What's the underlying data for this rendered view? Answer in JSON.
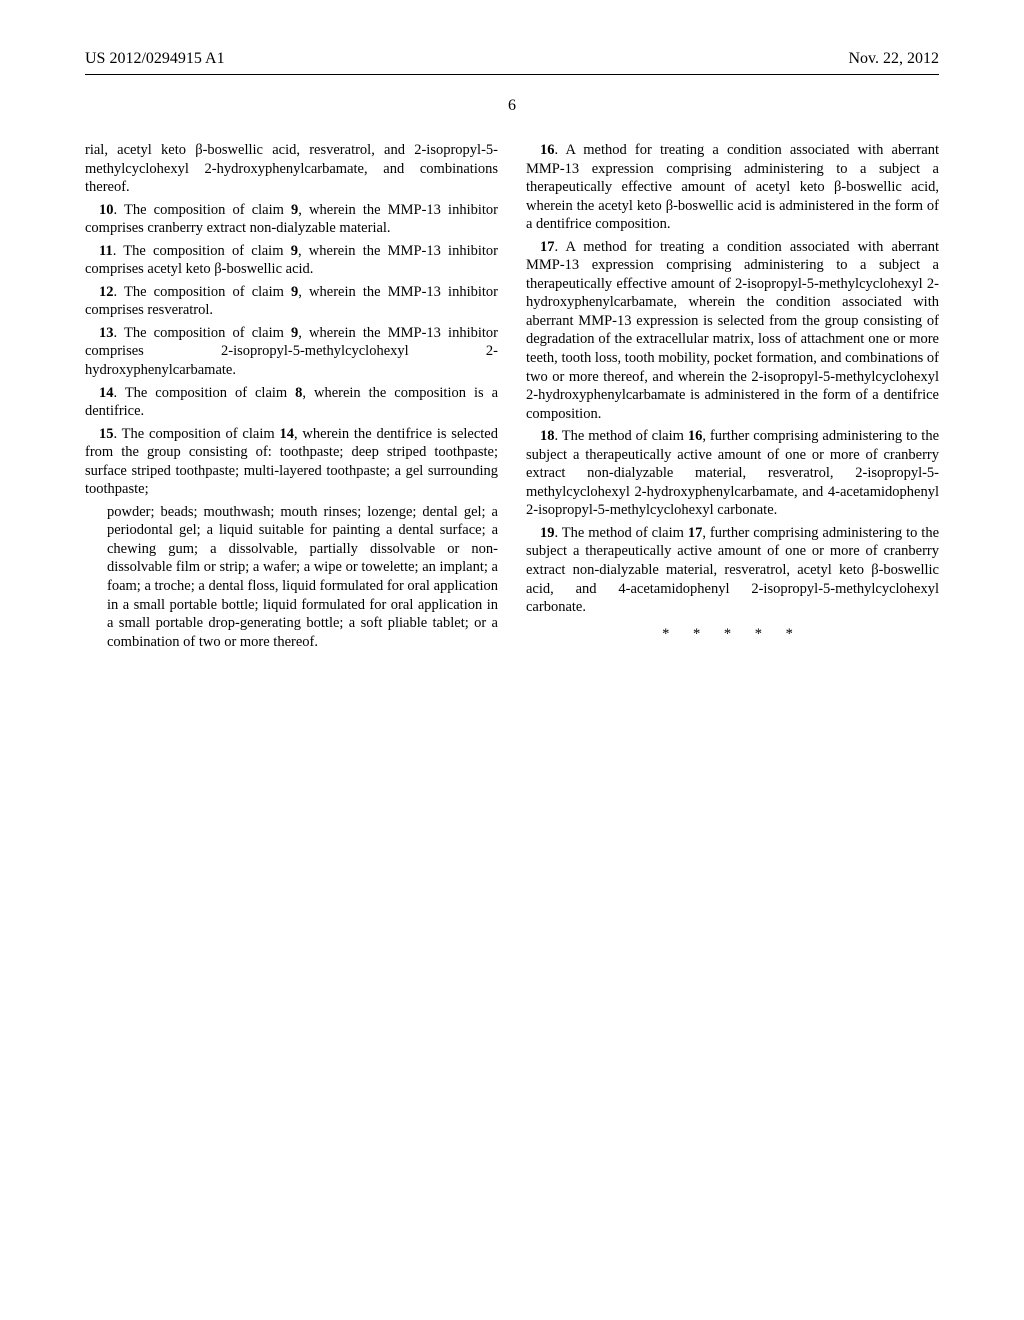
{
  "header": {
    "pubNumber": "US 2012/0294915 A1",
    "date": "Nov. 22, 2012"
  },
  "pageNumber": "6",
  "claims": {
    "c9_cont": "rial, acetyl keto β-boswellic acid, resveratrol, and 2-isopropyl-5-methylcyclohexyl 2-hydroxyphenylcarbamate, and combinations thereof.",
    "c10": ". The composition of claim ",
    "c10_ref": "9",
    "c10_tail": ", wherein the MMP-13 inhibitor comprises cranberry extract non-dialyzable material.",
    "c11": ". The composition of claim ",
    "c11_ref": "9",
    "c11_tail": ", wherein the MMP-13 inhibitor comprises acetyl keto β-boswellic acid.",
    "c12": ". The composition of claim ",
    "c12_ref": "9",
    "c12_tail": ", wherein the MMP-13 inhibitor comprises resveratrol.",
    "c13": ". The composition of claim ",
    "c13_ref": "9",
    "c13_tail": ", wherein the MMP-13 inhibitor comprises 2-isopropyl-5-methylcyclohexyl 2-hydroxyphenylcarbamate.",
    "c14": ". The composition of claim ",
    "c14_ref": "8",
    "c14_tail": ", wherein the composition is a dentifrice.",
    "c15": ". The composition of claim ",
    "c15_ref": "14",
    "c15_tail": ", wherein the dentifrice is selected from the group consisting of: toothpaste; deep striped toothpaste; surface striped toothpaste; multi-layered toothpaste; a gel surrounding toothpaste;",
    "c15_sub": "powder; beads; mouthwash; mouth rinses; lozenge; dental gel; a periodontal gel; a liquid suitable for painting a dental surface; a chewing gum; a dissolvable, partially dissolvable or non-dissolvable film or strip; a wafer; a wipe or towelette; an implant; a foam; a troche; a dental floss, liquid formulated for oral application in a small portable bottle; liquid formulated for oral application in a small portable drop-generating bottle; a soft pliable tablet; or a combination of two or more thereof.",
    "c16": ". A method for treating a condition associated with aberrant MMP-13 expression comprising administering to a subject a therapeutically effective amount of acetyl keto β-boswellic acid, wherein the acetyl keto β-boswellic acid is administered in the form of a dentifrice composition.",
    "c17": ". A method for treating a condition associated with aberrant MMP-13 expression comprising administering to a subject a therapeutically effective amount of 2-isopropyl-5-methylcyclohexyl 2-hydroxyphenylcarbamate, wherein the condition associated with aberrant MMP-13 expression is selected from the group consisting of degradation of the extracellular matrix, loss of attachment one or more teeth, tooth loss, tooth mobility, pocket formation, and combinations of two or more thereof, and wherein the 2-isopropyl-5-methylcyclohexyl 2-hydroxyphenylcarbamate is administered in the form of a dentifrice composition.",
    "c18": ". The method of claim ",
    "c18_ref": "16",
    "c18_tail": ", further comprising administering to the subject a therapeutically active amount of one or more of cranberry extract non-dialyzable material, resveratrol, 2-isopropyl-5-methylcyclohexyl 2-hydroxyphenylcarbamate, and 4-acetamidophenyl 2-isopropyl-5-methylcyclohexyl carbonate.",
    "c19": ". The method of claim ",
    "c19_ref": "17",
    "c19_tail": ", further comprising administering to the subject a therapeutically active amount of one or more of cranberry extract non-dialyzable material, resveratrol, acetyl keto β-boswellic acid, and 4-acetamidophenyl 2-isopropyl-5-methylcyclohexyl carbonate.",
    "n10": "10",
    "n11": "11",
    "n12": "12",
    "n13": "13",
    "n14": "14",
    "n15": "15",
    "n16": "16",
    "n17": "17",
    "n18": "18",
    "n19": "19"
  },
  "ending": "*  *  *  *  *"
}
